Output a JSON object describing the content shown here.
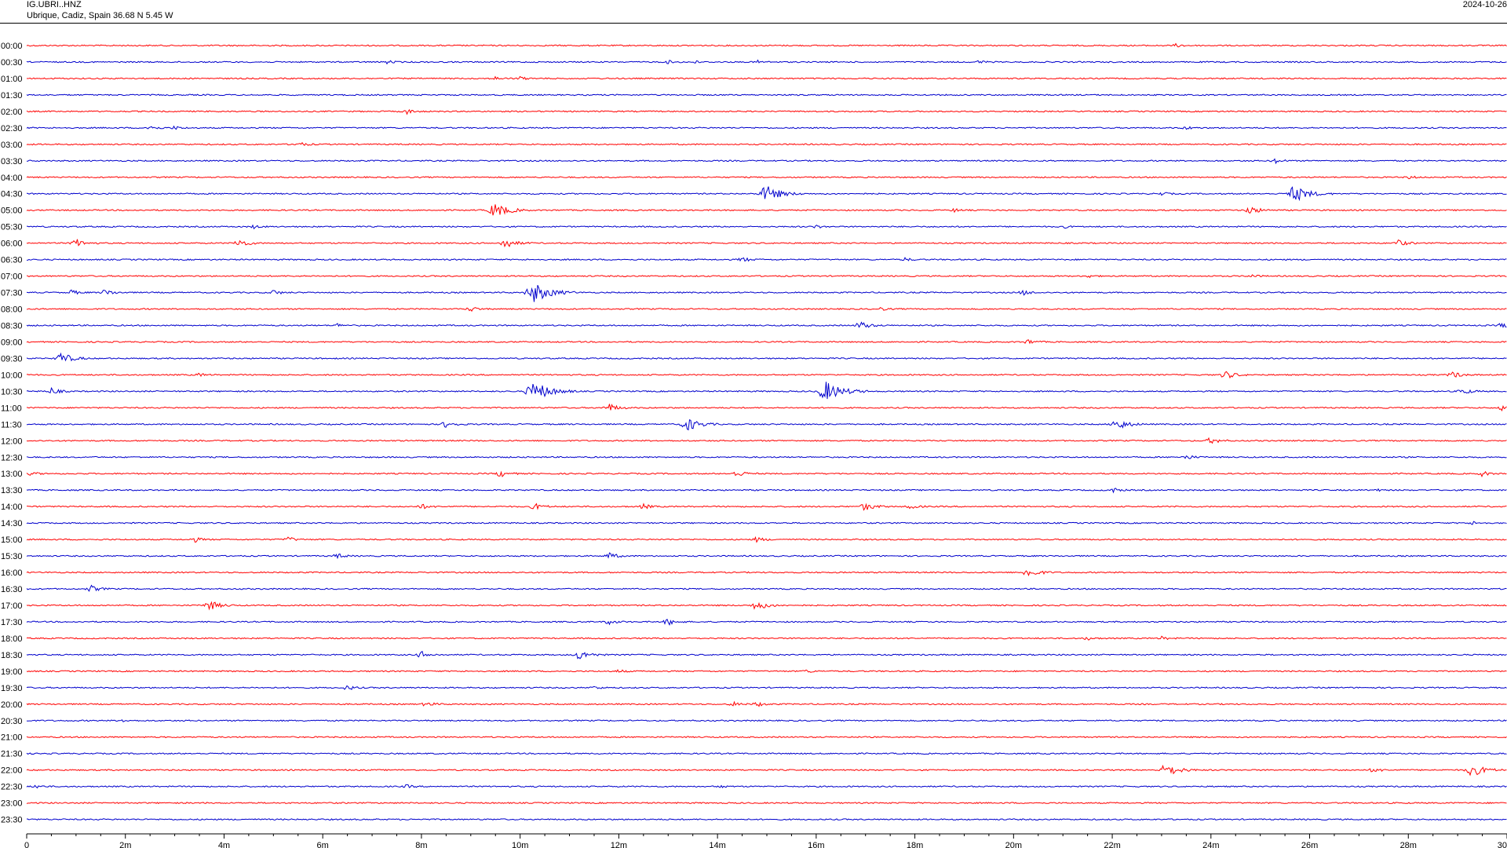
{
  "header": {
    "station": "IG.UBRI..HNZ",
    "location": "Ubrique, Cadiz, Spain  36.68 N 5.45 W",
    "date": "2024-10-26"
  },
  "chart_data": {
    "type": "line",
    "title": "",
    "xlabel": "",
    "ylabel": "",
    "xlim": [
      0,
      30
    ],
    "x_unit": "minutes",
    "grid": false,
    "legend": "none",
    "colors": {
      "even_row": "#ff0000",
      "odd_row": "#0000cc"
    },
    "x_ticks": [
      "0",
      "2m",
      "4m",
      "6m",
      "8m",
      "10m",
      "12m",
      "14m",
      "16m",
      "18m",
      "20m",
      "22m",
      "24m",
      "26m",
      "28m",
      "30"
    ],
    "rows": [
      {
        "label": "00:00",
        "events": [
          {
            "t": 23.3,
            "amp": 2
          }
        ]
      },
      {
        "label": "00:30",
        "events": [
          {
            "t": 7.3,
            "amp": 2
          },
          {
            "t": 13.0,
            "amp": 2
          },
          {
            "t": 13.5,
            "amp": 2
          },
          {
            "t": 14.8,
            "amp": 2
          },
          {
            "t": 19.3,
            "amp": 2
          }
        ]
      },
      {
        "label": "01:00",
        "events": [
          {
            "t": 9.5,
            "amp": 2
          },
          {
            "t": 10.0,
            "amp": 2
          }
        ]
      },
      {
        "label": "01:30",
        "events": []
      },
      {
        "label": "02:00",
        "events": [
          {
            "t": 7.7,
            "amp": 3
          }
        ]
      },
      {
        "label": "02:30",
        "events": [
          {
            "t": 2.5,
            "amp": 3
          },
          {
            "t": 3.0,
            "amp": 2
          },
          {
            "t": 23.5,
            "amp": 2
          }
        ]
      },
      {
        "label": "03:00",
        "events": [
          {
            "t": 5.5,
            "amp": 3
          }
        ]
      },
      {
        "label": "03:30",
        "events": [
          {
            "t": 25.3,
            "amp": 3
          }
        ]
      },
      {
        "label": "04:00",
        "events": [
          {
            "t": 28.0,
            "amp": 2
          }
        ]
      },
      {
        "label": "04:30",
        "events": [
          {
            "t": 15.0,
            "amp": 10
          },
          {
            "t": 25.7,
            "amp": 10
          },
          {
            "t": 23.0,
            "amp": 2
          }
        ]
      },
      {
        "label": "05:00",
        "events": [
          {
            "t": 9.5,
            "amp": 9
          },
          {
            "t": 24.8,
            "amp": 5
          },
          {
            "t": 18.8,
            "amp": 2
          }
        ]
      },
      {
        "label": "05:30",
        "events": [
          {
            "t": 4.6,
            "amp": 2
          },
          {
            "t": 16.0,
            "amp": 2
          },
          {
            "t": 21.0,
            "amp": 2
          }
        ]
      },
      {
        "label": "06:00",
        "events": [
          {
            "t": 1.0,
            "amp": 5
          },
          {
            "t": 4.3,
            "amp": 5
          },
          {
            "t": 9.7,
            "amp": 6
          },
          {
            "t": 27.8,
            "amp": 4
          }
        ]
      },
      {
        "label": "06:30",
        "events": [
          {
            "t": 14.5,
            "amp": 3
          },
          {
            "t": 17.8,
            "amp": 2
          }
        ]
      },
      {
        "label": "07:00",
        "events": [
          {
            "t": 21.5,
            "amp": 2
          },
          {
            "t": 24.8,
            "amp": 2
          }
        ]
      },
      {
        "label": "07:30",
        "events": [
          {
            "t": 1.6,
            "amp": 4
          },
          {
            "t": 0.9,
            "amp": 3
          },
          {
            "t": 5.0,
            "amp": 3
          },
          {
            "t": 10.3,
            "amp": 12
          },
          {
            "t": 20.2,
            "amp": 3
          }
        ]
      },
      {
        "label": "08:00",
        "events": [
          {
            "t": 9.0,
            "amp": 3
          },
          {
            "t": 17.3,
            "amp": 2
          }
        ]
      },
      {
        "label": "08:30",
        "events": [
          {
            "t": 6.3,
            "amp": 2
          },
          {
            "t": 16.9,
            "amp": 5
          },
          {
            "t": 29.9,
            "amp": 3
          }
        ]
      },
      {
        "label": "09:00",
        "events": [
          {
            "t": 20.3,
            "amp": 3
          }
        ]
      },
      {
        "label": "09:30",
        "events": [
          {
            "t": 0.7,
            "amp": 7
          }
        ]
      },
      {
        "label": "10:00",
        "events": [
          {
            "t": 3.5,
            "amp": 2
          },
          {
            "t": 24.3,
            "amp": 5
          },
          {
            "t": 28.9,
            "amp": 4
          }
        ]
      },
      {
        "label": "10:30",
        "events": [
          {
            "t": 0.5,
            "amp": 4
          },
          {
            "t": 10.3,
            "amp": 12
          },
          {
            "t": 16.2,
            "amp": 12
          },
          {
            "t": 29.1,
            "amp": 4
          }
        ]
      },
      {
        "label": "11:00",
        "events": [
          {
            "t": 11.8,
            "amp": 5
          },
          {
            "t": 29.9,
            "amp": 3
          }
        ]
      },
      {
        "label": "11:30",
        "events": [
          {
            "t": 8.5,
            "amp": 4
          },
          {
            "t": 13.4,
            "amp": 8
          },
          {
            "t": 22.1,
            "amp": 7
          }
        ]
      },
      {
        "label": "12:00",
        "events": [
          {
            "t": 24.0,
            "amp": 4
          }
        ]
      },
      {
        "label": "12:30",
        "events": [
          {
            "t": 23.5,
            "amp": 3
          }
        ]
      },
      {
        "label": "13:00",
        "events": [
          {
            "t": 9.6,
            "amp": 4
          },
          {
            "t": 14.4,
            "amp": 4
          },
          {
            "t": 29.5,
            "amp": 3
          },
          {
            "t": 0.1,
            "amp": 2
          }
        ]
      },
      {
        "label": "13:30",
        "events": [
          {
            "t": 22.0,
            "amp": 3
          },
          {
            "t": 27.3,
            "amp": 2
          }
        ]
      },
      {
        "label": "14:00",
        "events": [
          {
            "t": 8.0,
            "amp": 3
          },
          {
            "t": 10.3,
            "amp": 4
          },
          {
            "t": 12.5,
            "amp": 3
          },
          {
            "t": 17.0,
            "amp": 5
          },
          {
            "t": 17.9,
            "amp": 3
          }
        ]
      },
      {
        "label": "14:30",
        "events": [
          {
            "t": 29.3,
            "amp": 2
          }
        ]
      },
      {
        "label": "15:00",
        "events": [
          {
            "t": 3.4,
            "amp": 3
          },
          {
            "t": 5.3,
            "amp": 3
          },
          {
            "t": 14.8,
            "amp": 3
          }
        ]
      },
      {
        "label": "15:30",
        "events": [
          {
            "t": 6.3,
            "amp": 3
          },
          {
            "t": 11.8,
            "amp": 4
          }
        ]
      },
      {
        "label": "16:00",
        "events": [
          {
            "t": 20.3,
            "amp": 6
          }
        ]
      },
      {
        "label": "16:30",
        "events": [
          {
            "t": 1.3,
            "amp": 4
          }
        ]
      },
      {
        "label": "17:00",
        "events": [
          {
            "t": 3.7,
            "amp": 6
          },
          {
            "t": 14.8,
            "amp": 6
          }
        ]
      },
      {
        "label": "17:30",
        "events": [
          {
            "t": 11.8,
            "amp": 3
          },
          {
            "t": 13.0,
            "amp": 4
          }
        ]
      },
      {
        "label": "18:00",
        "events": [
          {
            "t": 21.5,
            "amp": 2
          },
          {
            "t": 23.0,
            "amp": 2
          }
        ]
      },
      {
        "label": "18:30",
        "events": [
          {
            "t": 8.0,
            "amp": 4
          },
          {
            "t": 11.2,
            "amp": 6
          }
        ]
      },
      {
        "label": "19:00",
        "events": [
          {
            "t": 15.8,
            "amp": 2
          },
          {
            "t": 12.0,
            "amp": 2
          }
        ]
      },
      {
        "label": "19:30",
        "events": [
          {
            "t": 6.5,
            "amp": 3
          },
          {
            "t": 11.5,
            "amp": 2
          }
        ]
      },
      {
        "label": "20:00",
        "events": [
          {
            "t": 8.1,
            "amp": 3
          },
          {
            "t": 14.3,
            "amp": 3
          },
          {
            "t": 14.8,
            "amp": 3
          }
        ]
      },
      {
        "label": "20:30",
        "events": [
          {
            "t": 1.9,
            "amp": 2
          }
        ]
      },
      {
        "label": "21:00",
        "events": []
      },
      {
        "label": "21:30",
        "events": []
      },
      {
        "label": "22:00",
        "events": [
          {
            "t": 23.1,
            "amp": 8
          },
          {
            "t": 29.3,
            "amp": 8
          },
          {
            "t": 27.3,
            "amp": 3
          }
        ]
      },
      {
        "label": "22:30",
        "events": [
          {
            "t": 14.0,
            "amp": 2
          },
          {
            "t": 7.7,
            "amp": 2
          },
          {
            "t": 0.2,
            "amp": 2
          }
        ]
      },
      {
        "label": "23:00",
        "events": []
      },
      {
        "label": "23:30",
        "events": []
      }
    ]
  }
}
